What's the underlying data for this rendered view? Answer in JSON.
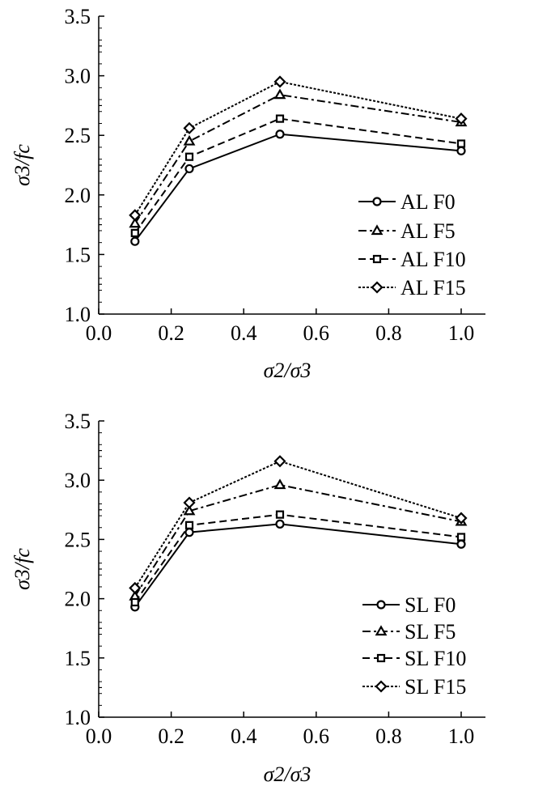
{
  "chart_data": [
    {
      "type": "line",
      "xlabel": "σ2/σ3",
      "ylabel": "σ3/fc",
      "xlim": [
        0.0,
        1.0
      ],
      "ylim": [
        1.0,
        3.5
      ],
      "xticks": [
        "0.0",
        "0.2",
        "0.4",
        "0.6",
        "0.8",
        "1.0"
      ],
      "yticks": [
        "1.0",
        "1.5",
        "2.0",
        "2.5",
        "3.0",
        "3.5"
      ],
      "grid": false,
      "legend_position": "right",
      "x": [
        0.1,
        0.25,
        0.5,
        1.0
      ],
      "series": [
        {
          "name": "AL F0",
          "marker": "circle",
          "dash": "solid",
          "values": [
            1.61,
            2.22,
            2.51,
            2.37
          ]
        },
        {
          "name": "AL F5",
          "marker": "triangle",
          "dash": "dashdot",
          "values": [
            1.76,
            2.45,
            2.84,
            2.61
          ]
        },
        {
          "name": "AL F10",
          "marker": "square",
          "dash": "dashed",
          "values": [
            1.68,
            2.32,
            2.64,
            2.43
          ]
        },
        {
          "name": "AL F15",
          "marker": "diamond",
          "dash": "dotted",
          "values": [
            1.83,
            2.56,
            2.95,
            2.64
          ]
        }
      ]
    },
    {
      "type": "line",
      "xlabel": "σ2/σ3",
      "ylabel": "σ3/fc",
      "xlim": [
        0.0,
        1.0
      ],
      "ylim": [
        1.0,
        3.5
      ],
      "xticks": [
        "0.0",
        "0.2",
        "0.4",
        "0.6",
        "0.8",
        "1.0"
      ],
      "yticks": [
        "1.0",
        "1.5",
        "2.0",
        "2.5",
        "3.0",
        "3.5"
      ],
      "grid": false,
      "legend_position": "bottom-right",
      "x": [
        0.1,
        0.25,
        0.5,
        1.0
      ],
      "series": [
        {
          "name": "SL F0",
          "marker": "circle",
          "dash": "solid",
          "values": [
            1.93,
            2.56,
            2.63,
            2.46
          ]
        },
        {
          "name": "SL F5",
          "marker": "triangle",
          "dash": "dashdot",
          "values": [
            2.02,
            2.74,
            2.96,
            2.65
          ]
        },
        {
          "name": "SL F10",
          "marker": "square",
          "dash": "dashed",
          "values": [
            1.97,
            2.62,
            2.71,
            2.52
          ]
        },
        {
          "name": "SL F15",
          "marker": "diamond",
          "dash": "dotted",
          "values": [
            2.09,
            2.81,
            3.16,
            2.68
          ]
        }
      ]
    }
  ]
}
